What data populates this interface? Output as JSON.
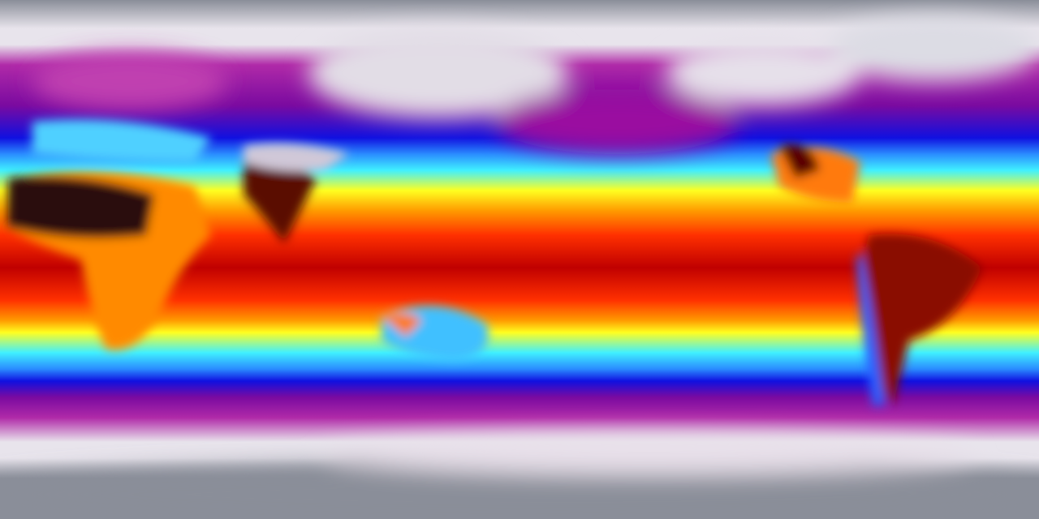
{
  "map": {
    "projection": "equirectangular",
    "colormap": [
      "#8a8e99",
      "#e8e4ec",
      "#b02aa8",
      "#7a0aa0",
      "#1010e0",
      "#2a8cff",
      "#40f0ff",
      "#ffff20",
      "#ff9a00",
      "#ff3000",
      "#c00000",
      "#3a0a08"
    ],
    "land_colors": {
      "polar": "#d8d4dc",
      "cold": "#8a1a9a",
      "temperate": "#50c8ff",
      "desert": "#2a0c08",
      "tropical": "#7a0a06",
      "dry": "#ff6000"
    }
  }
}
